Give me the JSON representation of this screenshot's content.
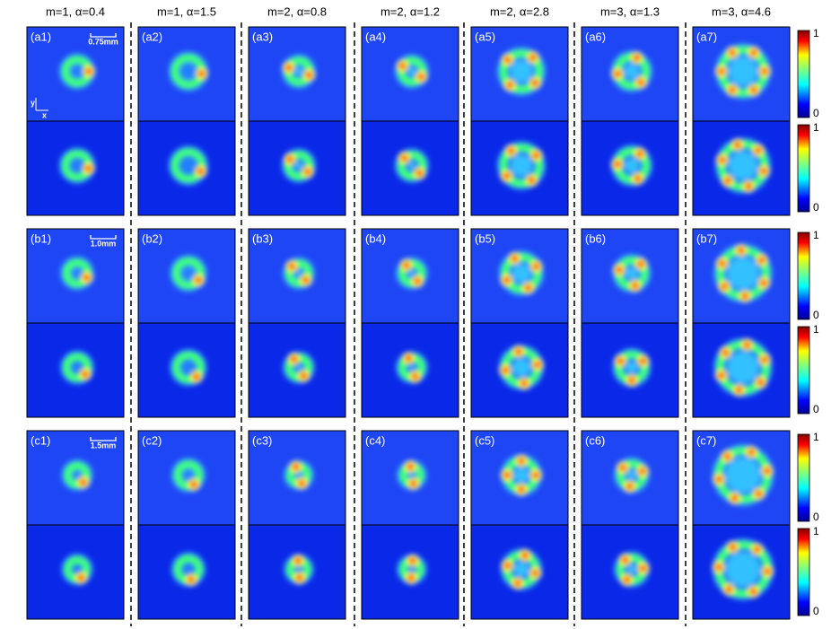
{
  "columns": [
    {
      "header": "m=1, α=0.4"
    },
    {
      "header": "m=1, α=1.5"
    },
    {
      "header": "m=2, α=0.8"
    },
    {
      "header": "m=2, α=1.2"
    },
    {
      "header": "m=2, α=2.8"
    },
    {
      "header": "m=3, α=1.3"
    },
    {
      "header": "m=3, α=4.6"
    }
  ],
  "rows": [
    {
      "panels": [
        "(a1)",
        "(a2)",
        "(a3)",
        "(a4)",
        "(a5)",
        "(a6)",
        "(a7)"
      ],
      "scale_bar": "0.75mm"
    },
    {
      "panels": [
        "(b1)",
        "(b2)",
        "(b3)",
        "(b4)",
        "(b5)",
        "(b6)",
        "(b7)"
      ],
      "scale_bar": "1.0mm"
    },
    {
      "panels": [
        "(c1)",
        "(c2)",
        "(c3)",
        "(c4)",
        "(c5)",
        "(c6)",
        "(c7)"
      ],
      "scale_bar": "1.5mm"
    }
  ],
  "axes": {
    "y": "y",
    "x": "x"
  },
  "colorbar": {
    "ticks": [
      1,
      0
    ]
  }
}
